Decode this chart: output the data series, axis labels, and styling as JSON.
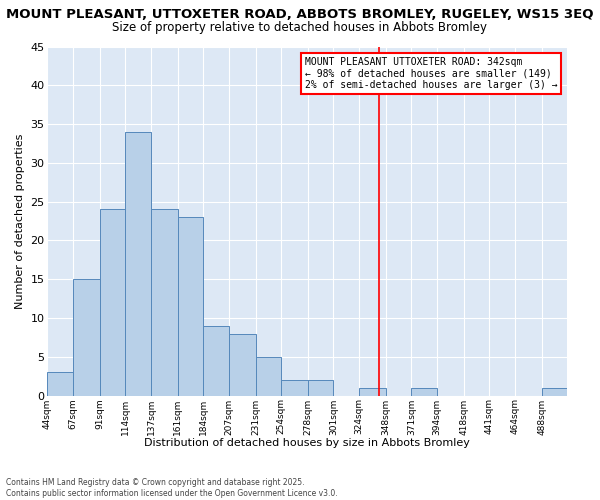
{
  "title": "MOUNT PLEASANT, UTTOXETER ROAD, ABBOTS BROMLEY, RUGELEY, WS15 3EQ",
  "subtitle": "Size of property relative to detached houses in Abbots Bromley",
  "xlabel": "Distribution of detached houses by size in Abbots Bromley",
  "ylabel": "Number of detached properties",
  "bin_edges": [
    44,
    67,
    91,
    114,
    137,
    161,
    184,
    207,
    231,
    254,
    278,
    301,
    324,
    348,
    371,
    394,
    418,
    441,
    464,
    488,
    511
  ],
  "counts": [
    3,
    15,
    24,
    34,
    24,
    23,
    9,
    8,
    5,
    2,
    2,
    0,
    1,
    0,
    1,
    0,
    0,
    0,
    0,
    1
  ],
  "bar_color": "#b8d0e8",
  "bar_edge_color": "#5588bb",
  "vline_x": 342,
  "vline_color": "red",
  "ylim": [
    0,
    45
  ],
  "yticks": [
    0,
    5,
    10,
    15,
    20,
    25,
    30,
    35,
    40,
    45
  ],
  "annotation_title": "MOUNT PLEASANT UTTOXETER ROAD: 342sqm",
  "annotation_line1": "← 98% of detached houses are smaller (149)",
  "annotation_line2": "2% of semi-detached houses are larger (3) →",
  "footnote1": "Contains HM Land Registry data © Crown copyright and database right 2025.",
  "footnote2": "Contains public sector information licensed under the Open Government Licence v3.0.",
  "bg_color": "#dde8f5",
  "fig_bg_color": "#ffffff",
  "title_fontsize": 9.5,
  "subtitle_fontsize": 8.5,
  "grid_color": "#ffffff"
}
